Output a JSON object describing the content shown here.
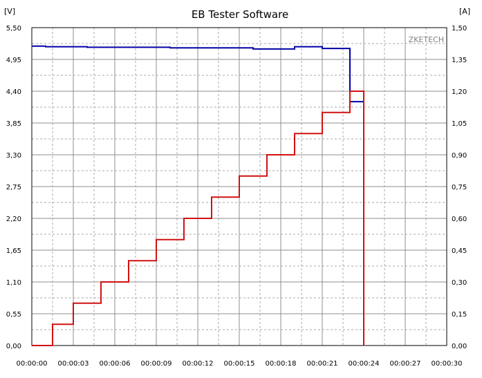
{
  "chart_data": {
    "type": "line",
    "title": "EB Tester Software",
    "watermark": "ZKETECH",
    "y_left": {
      "unit_label": "[V]",
      "range": [
        0,
        5.5
      ],
      "ticks": [
        "0,00",
        "0,55",
        "1,10",
        "1,65",
        "2,20",
        "2,75",
        "3,30",
        "3,85",
        "4,40",
        "4,95",
        "5,50"
      ]
    },
    "y_right": {
      "unit_label": "[A]",
      "range": [
        0,
        1.5
      ],
      "ticks": [
        "0,00",
        "0,15",
        "0,30",
        "0,45",
        "0,60",
        "0,75",
        "0,90",
        "1,05",
        "1,20",
        "1,35",
        "1,50"
      ]
    },
    "x_axis": {
      "range_seconds": [
        0,
        30
      ],
      "ticks": [
        "00:00:00",
        "00:00:03",
        "00:00:06",
        "00:00:09",
        "00:00:12",
        "00:00:15",
        "00:00:18",
        "00:00:21",
        "00:00:24",
        "00:00:27",
        "00:00:30"
      ]
    },
    "grid": true,
    "series": [
      {
        "axis": "left",
        "color": "#0000a8",
        "points": [
          [
            0,
            5.18
          ],
          [
            1,
            5.18
          ],
          [
            1,
            5.17
          ],
          [
            4,
            5.17
          ],
          [
            4,
            5.16
          ],
          [
            10,
            5.16
          ],
          [
            10,
            5.15
          ],
          [
            16,
            5.15
          ],
          [
            16,
            5.13
          ],
          [
            19,
            5.13
          ],
          [
            19,
            5.17
          ],
          [
            21,
            5.17
          ],
          [
            21,
            5.14
          ],
          [
            23,
            5.14
          ],
          [
            23,
            4.22
          ],
          [
            24,
            4.22
          ],
          [
            24,
            0.0
          ]
        ]
      },
      {
        "axis": "right",
        "color": "#d01010",
        "points": [
          [
            0,
            0.0
          ],
          [
            1.5,
            0.0
          ],
          [
            1.5,
            0.1
          ],
          [
            3,
            0.1
          ],
          [
            3,
            0.2
          ],
          [
            5,
            0.2
          ],
          [
            5,
            0.3
          ],
          [
            7,
            0.3
          ],
          [
            7,
            0.4
          ],
          [
            9,
            0.4
          ],
          [
            9,
            0.5
          ],
          [
            11,
            0.5
          ],
          [
            11,
            0.6
          ],
          [
            13,
            0.6
          ],
          [
            13,
            0.7
          ],
          [
            15,
            0.7
          ],
          [
            15,
            0.8
          ],
          [
            17,
            0.8
          ],
          [
            17,
            0.9
          ],
          [
            19,
            0.9
          ],
          [
            19,
            1.0
          ],
          [
            21,
            1.0
          ],
          [
            21,
            1.1
          ],
          [
            23,
            1.1
          ],
          [
            23,
            1.2
          ],
          [
            24,
            1.2
          ],
          [
            24,
            0.0
          ]
        ]
      }
    ]
  }
}
